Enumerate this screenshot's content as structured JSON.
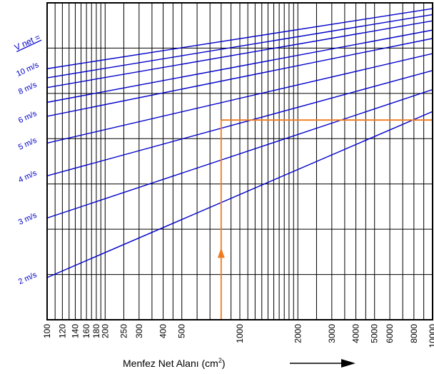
{
  "chart_data": {
    "type": "line",
    "title": "",
    "xlabel": "Menfez Net Alanı (cm²)",
    "xlabel_main": "Menfez Net Alanı (cm",
    "xlabel_sup": "2",
    "xlabel_close": ")",
    "xscale": "log",
    "xlim": [
      100,
      10000
    ],
    "x_tick_labels": [
      {
        "value": 100,
        "label": "100"
      },
      {
        "value": 120,
        "label": "120"
      },
      {
        "value": 140,
        "label": "140"
      },
      {
        "value": 160,
        "label": "160"
      },
      {
        "value": 180,
        "label": "180"
      },
      {
        "value": 200,
        "label": "200"
      },
      {
        "value": 250,
        "label": "250"
      },
      {
        "value": 300,
        "label": "300"
      },
      {
        "value": 400,
        "label": "400"
      },
      {
        "value": 500,
        "label": "500"
      },
      {
        "value": 1000,
        "label": "1000"
      },
      {
        "value": 2000,
        "label": "2000"
      },
      {
        "value": 3000,
        "label": "3000"
      },
      {
        "value": 4000,
        "label": "4000"
      },
      {
        "value": 5000,
        "label": "5000"
      },
      {
        "value": 6000,
        "label": "6000"
      },
      {
        "value": 8000,
        "label": "8000"
      },
      {
        "value": 10000,
        "label": "10000"
      }
    ],
    "x_gridlines": [
      100,
      110,
      120,
      130,
      140,
      150,
      160,
      170,
      180,
      190,
      200,
      250,
      300,
      350,
      400,
      450,
      500,
      600,
      700,
      800,
      900,
      1000,
      1100,
      1200,
      1300,
      1400,
      1500,
      1600,
      1700,
      1800,
      1900,
      2000,
      2500,
      3000,
      3500,
      4000,
      4500,
      5000,
      6000,
      7000,
      8000,
      9000,
      10000
    ],
    "y_gridline_count": 7,
    "grid": true,
    "velocity_labels": [
      {
        "value": 2,
        "label": "2 m/s"
      },
      {
        "value": 3,
        "label": "3 m/s"
      },
      {
        "value": 4,
        "label": "4 m/s"
      },
      {
        "value": 5,
        "label": "5 m/s"
      },
      {
        "value": 6,
        "label": "6 m/s"
      },
      {
        "value": 8,
        "label": "8 m/s"
      },
      {
        "value": 10,
        "label": "10 m/s"
      }
    ],
    "velocity_header": "V net =",
    "series": [
      {
        "value": 2,
        "start": [
          100,
          2
        ],
        "end": [
          10000,
          6.2
        ]
      },
      {
        "value": 3,
        "start": [
          100,
          3
        ],
        "end": [
          10000,
          7.2
        ]
      },
      {
        "value": 4,
        "start": [
          100,
          4
        ],
        "end": [
          10000,
          8.2
        ]
      },
      {
        "value": 5,
        "start": [
          100,
          5
        ],
        "end": [
          10000,
          9.2
        ]
      },
      {
        "value": 6,
        "start": [
          100,
          6
        ],
        "end": [
          10000,
          10.2
        ]
      },
      {
        "value": 7,
        "start": [
          100,
          6.6
        ],
        "end": [
          10000,
          10.8
        ]
      },
      {
        "value": 8,
        "start": [
          100,
          7.3
        ],
        "end": [
          10000,
          11.5
        ]
      },
      {
        "value": 9,
        "start": [
          100,
          7.8
        ],
        "end": [
          10000,
          12
        ]
      },
      {
        "value": 10,
        "start": [
          100,
          8.3
        ],
        "end": [
          10000,
          12.5
        ]
      }
    ],
    "example_path": {
      "x": 800,
      "y_start": 0.9,
      "y_turn": 5.85,
      "x_end": 10000
    },
    "colors": {
      "series": "#0000cc",
      "grid": "#000000",
      "example": "#f07b1e",
      "labels": "#0000cc",
      "axis_text": "#000000"
    }
  }
}
